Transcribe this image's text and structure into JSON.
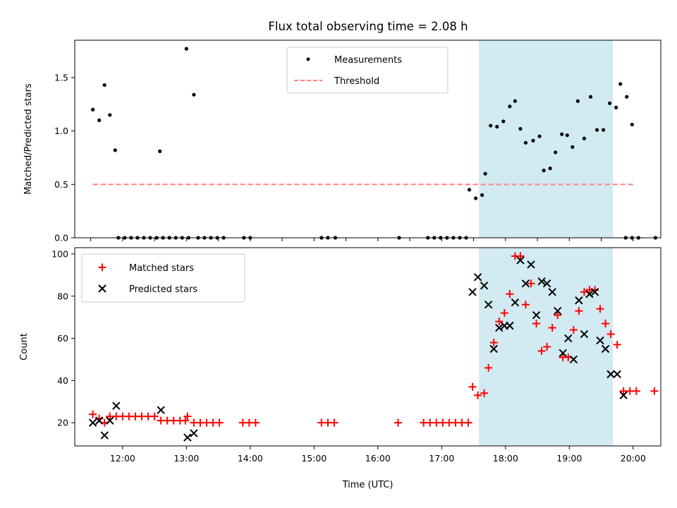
{
  "title": "Flux total observing time = 2.08 h",
  "colors": {
    "measurement": "#000000",
    "threshold": "#ff7f7f",
    "matched": "#ff0000",
    "predicted": "#000000",
    "highlight": "#add8e6"
  },
  "chart_data": [
    {
      "type": "scatter",
      "title": "Flux total observing time = 2.08 h",
      "ylabel": "Matched/Predicted stars",
      "xlabel": "",
      "x_unit": "hours UTC",
      "xlim": [
        "11:15",
        "20:26"
      ],
      "ylim": [
        0,
        1.85
      ],
      "yticks": [
        "0.0",
        "0.5",
        "1.0",
        "1.5"
      ],
      "xticks": [],
      "highlight_span": [
        "17:35",
        "19:41"
      ],
      "legend_position": "top-center",
      "threshold": {
        "name": "Threshold",
        "value": 0.5,
        "x_range": [
          "11:32",
          "20:02"
        ]
      },
      "series": [
        {
          "name": "Measurements",
          "points": [
            [
              "11:32",
              1.2
            ],
            [
              "11:38",
              1.1
            ],
            [
              "11:43",
              1.43
            ],
            [
              "11:48",
              1.15
            ],
            [
              "11:53",
              0.82
            ],
            [
              "11:56",
              0
            ],
            [
              "12:02",
              0
            ],
            [
              "12:08",
              0
            ],
            [
              "12:14",
              0
            ],
            [
              "12:20",
              0
            ],
            [
              "12:26",
              0
            ],
            [
              "12:32",
              0
            ],
            [
              "12:38",
              0
            ],
            [
              "12:35",
              0.81
            ],
            [
              "12:44",
              0
            ],
            [
              "12:50",
              0
            ],
            [
              "12:56",
              0
            ],
            [
              "13:00",
              1.77
            ],
            [
              "13:02",
              0
            ],
            [
              "13:07",
              1.34
            ],
            [
              "13:11",
              0
            ],
            [
              "13:17",
              0
            ],
            [
              "13:23",
              0
            ],
            [
              "13:29",
              0
            ],
            [
              "13:35",
              0
            ],
            [
              "13:54",
              0
            ],
            [
              "14:00",
              0
            ],
            [
              "15:07",
              0
            ],
            [
              "15:13",
              0
            ],
            [
              "15:20",
              0
            ],
            [
              "16:20",
              0
            ],
            [
              "16:47",
              0
            ],
            [
              "16:53",
              0
            ],
            [
              "16:59",
              0
            ],
            [
              "17:05",
              0
            ],
            [
              "17:11",
              0
            ],
            [
              "17:17",
              0
            ],
            [
              "17:23",
              0
            ],
            [
              "17:26",
              0.45
            ],
            [
              "17:32",
              0.37
            ],
            [
              "17:38",
              0.4
            ],
            [
              "17:41",
              0.6
            ],
            [
              "17:46",
              1.05
            ],
            [
              "17:52",
              1.04
            ],
            [
              "17:58",
              1.09
            ],
            [
              "18:04",
              1.23
            ],
            [
              "18:09",
              1.28
            ],
            [
              "18:14",
              1.02
            ],
            [
              "18:19",
              0.89
            ],
            [
              "18:26",
              0.91
            ],
            [
              "18:32",
              0.95
            ],
            [
              "18:36",
              0.63
            ],
            [
              "18:42",
              0.65
            ],
            [
              "18:47",
              0.8
            ],
            [
              "18:53",
              0.97
            ],
            [
              "18:58",
              0.96
            ],
            [
              "19:03",
              0.85
            ],
            [
              "19:08",
              1.28
            ],
            [
              "19:14",
              0.93
            ],
            [
              "19:20",
              1.32
            ],
            [
              "19:26",
              1.01
            ],
            [
              "19:32",
              1.01
            ],
            [
              "19:38",
              1.26
            ],
            [
              "19:44",
              1.22
            ],
            [
              "19:48",
              1.44
            ],
            [
              "19:54",
              1.32
            ],
            [
              "19:59",
              1.06
            ],
            [
              "19:53",
              0
            ],
            [
              "19:59",
              0
            ],
            [
              "20:05",
              0
            ],
            [
              "20:21",
              0
            ]
          ]
        }
      ]
    },
    {
      "type": "scatter",
      "title": "",
      "ylabel": "Count",
      "xlabel": "Time (UTC)",
      "x_unit": "hours UTC",
      "xlim": [
        "11:15",
        "20:26"
      ],
      "ylim": [
        9,
        103
      ],
      "yticks": [
        "20",
        "40",
        "60",
        "80",
        "100"
      ],
      "xticks": [
        "12:00",
        "13:00",
        "14:00",
        "15:00",
        "16:00",
        "17:00",
        "18:00",
        "19:00",
        "20:00"
      ],
      "highlight_span": [
        "17:35",
        "19:41"
      ],
      "legend_position": "top-left",
      "series": [
        {
          "name": "Matched stars",
          "marker": "plus",
          "points": [
            [
              "11:32",
              24
            ],
            [
              "11:38",
              22
            ],
            [
              "11:43",
              20
            ],
            [
              "11:48",
              23
            ],
            [
              "11:54",
              23
            ],
            [
              "12:00",
              23
            ],
            [
              "12:06",
              23
            ],
            [
              "12:12",
              23
            ],
            [
              "12:18",
              23
            ],
            [
              "12:24",
              23
            ],
            [
              "12:30",
              23
            ],
            [
              "12:36",
              21
            ],
            [
              "12:42",
              21
            ],
            [
              "12:48",
              21
            ],
            [
              "12:54",
              21
            ],
            [
              "12:59",
              21
            ],
            [
              "13:01",
              23
            ],
            [
              "13:07",
              20
            ],
            [
              "13:13",
              20
            ],
            [
              "13:19",
              20
            ],
            [
              "13:25",
              20
            ],
            [
              "13:31",
              20
            ],
            [
              "13:53",
              20
            ],
            [
              "13:59",
              20
            ],
            [
              "14:05",
              20
            ],
            [
              "15:07",
              20
            ],
            [
              "15:13",
              20
            ],
            [
              "15:19",
              20
            ],
            [
              "16:19",
              20
            ],
            [
              "16:43",
              20
            ],
            [
              "16:49",
              20
            ],
            [
              "16:55",
              20
            ],
            [
              "17:01",
              20
            ],
            [
              "17:07",
              20
            ],
            [
              "17:13",
              20
            ],
            [
              "17:19",
              20
            ],
            [
              "17:25",
              20
            ],
            [
              "17:29",
              37
            ],
            [
              "17:34",
              33
            ],
            [
              "17:40",
              34
            ],
            [
              "17:44",
              46
            ],
            [
              "17:49",
              58
            ],
            [
              "17:54",
              68
            ],
            [
              "17:59",
              72
            ],
            [
              "18:04",
              81
            ],
            [
              "18:09",
              99
            ],
            [
              "18:14",
              99
            ],
            [
              "18:19",
              76
            ],
            [
              "18:24",
              86
            ],
            [
              "18:29",
              67
            ],
            [
              "18:34",
              54
            ],
            [
              "18:39",
              56
            ],
            [
              "18:44",
              65
            ],
            [
              "18:49",
              71
            ],
            [
              "18:54",
              51
            ],
            [
              "18:59",
              51
            ],
            [
              "19:04",
              64
            ],
            [
              "19:09",
              73
            ],
            [
              "19:14",
              82
            ],
            [
              "19:19",
              83
            ],
            [
              "19:24",
              83
            ],
            [
              "19:29",
              74
            ],
            [
              "19:34",
              67
            ],
            [
              "19:39",
              62
            ],
            [
              "19:45",
              57
            ],
            [
              "19:51",
              35
            ],
            [
              "19:57",
              35
            ],
            [
              "20:03",
              35
            ],
            [
              "20:20",
              35
            ]
          ]
        },
        {
          "name": "Predicted stars",
          "marker": "x",
          "points": [
            [
              "11:32",
              20
            ],
            [
              "11:38",
              21
            ],
            [
              "11:43",
              14
            ],
            [
              "11:48",
              21
            ],
            [
              "11:54",
              28
            ],
            [
              "12:36",
              26
            ],
            [
              "13:01",
              13
            ],
            [
              "13:07",
              15
            ],
            [
              "17:29",
              82
            ],
            [
              "17:34",
              89
            ],
            [
              "17:40",
              85
            ],
            [
              "17:44",
              76
            ],
            [
              "17:49",
              55
            ],
            [
              "17:54",
              65
            ],
            [
              "17:59",
              66
            ],
            [
              "18:04",
              66
            ],
            [
              "18:09",
              77
            ],
            [
              "18:14",
              97
            ],
            [
              "18:19",
              86
            ],
            [
              "18:24",
              95
            ],
            [
              "18:29",
              71
            ],
            [
              "18:34",
              87
            ],
            [
              "18:39",
              86
            ],
            [
              "18:44",
              82
            ],
            [
              "18:49",
              73
            ],
            [
              "18:54",
              53
            ],
            [
              "18:59",
              60
            ],
            [
              "19:04",
              50
            ],
            [
              "19:09",
              78
            ],
            [
              "19:14",
              62
            ],
            [
              "19:19",
              81
            ],
            [
              "19:24",
              82
            ],
            [
              "19:29",
              59
            ],
            [
              "19:34",
              55
            ],
            [
              "19:39",
              43
            ],
            [
              "19:45",
              43
            ],
            [
              "19:51",
              33
            ]
          ]
        }
      ]
    }
  ]
}
